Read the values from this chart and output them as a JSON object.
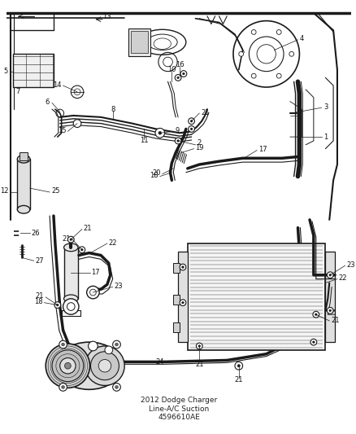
{
  "title": "2012 Dodge Charger\nLine-A/C Suction\n4596610AE",
  "bg_color": "#ffffff",
  "line_color": "#1a1a1a",
  "label_color": "#111111",
  "fig_width": 4.38,
  "fig_height": 5.33,
  "dpi": 100
}
